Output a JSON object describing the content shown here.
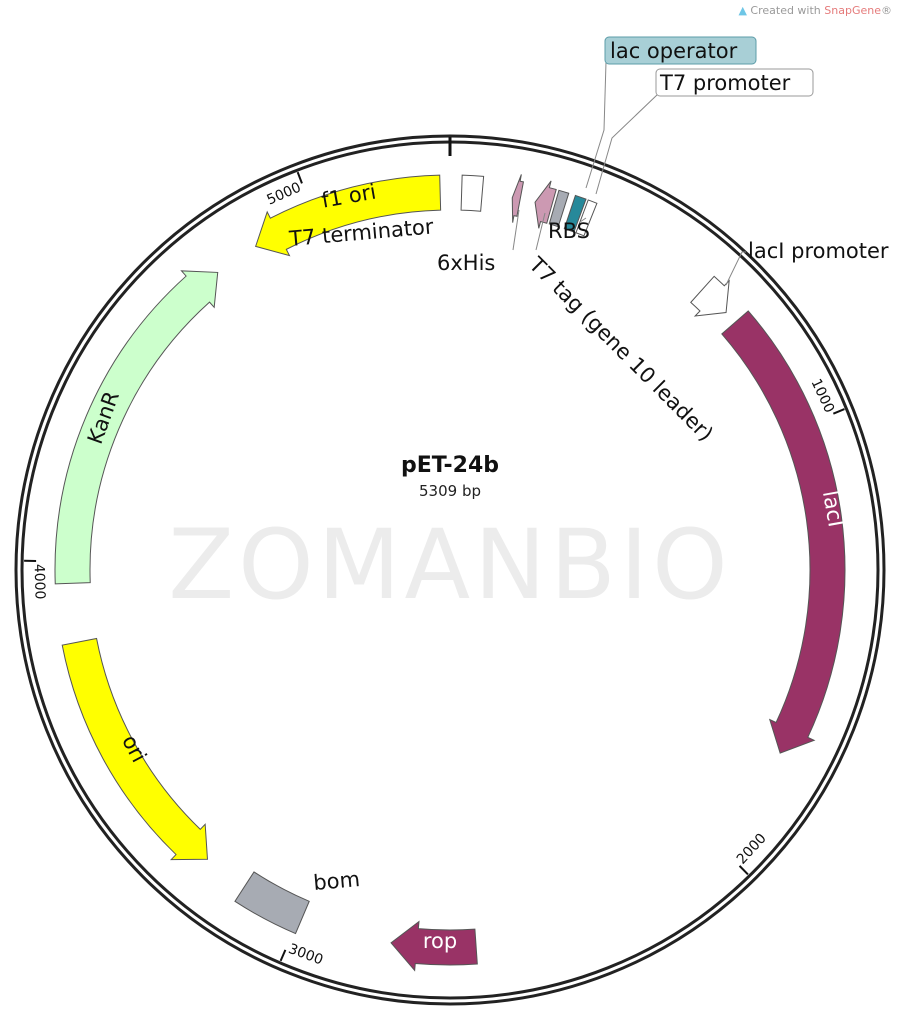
{
  "credit": {
    "prefix": "Created with ",
    "brand": "SnapGene",
    "suffix": "®",
    "icon": "snapgene-logo-icon"
  },
  "watermark": "ZOMANBIO",
  "plasmid": {
    "name": "pET-24b",
    "size_label": "5309 bp",
    "length": 5309
  },
  "ticks": [
    {
      "bp": 1000,
      "label": "1000"
    },
    {
      "bp": 2000,
      "label": "2000"
    },
    {
      "bp": 3000,
      "label": "3000"
    },
    {
      "bp": 4000,
      "label": "4000"
    },
    {
      "bp": 5000,
      "label": "5000"
    }
  ],
  "features": [
    {
      "name": "f1 ori",
      "start": 4852,
      "end": 5287,
      "direction": "reverse",
      "shape": "arrow",
      "color": "#ffff00"
    },
    {
      "name": "T7 terminator",
      "start": 26,
      "end": 72,
      "direction": "none",
      "shape": "box",
      "color": "#ffffff"
    },
    {
      "name": "6xHis",
      "start": 140,
      "end": 158,
      "direction": "reverse",
      "shape": "arrow",
      "color": "#cc99b2"
    },
    {
      "name": "T7 tag (gene 10 leader)",
      "start": 192,
      "end": 230,
      "direction": "reverse",
      "shape": "arrow",
      "color": "#cc99b2"
    },
    {
      "name": "RBS",
      "start": 236,
      "end": 258,
      "direction": "none",
      "shape": "box",
      "color": "#a7abb3"
    },
    {
      "name": "lac operator",
      "start": 273,
      "end": 297,
      "direction": "none",
      "shape": "box",
      "color": "#27899a"
    },
    {
      "name": "T7 promoter",
      "start": 302,
      "end": 322,
      "direction": "none",
      "shape": "box",
      "color": "#ffffff"
    },
    {
      "name": "lacI promoter",
      "start": 619,
      "end": 693,
      "direction": "forward",
      "shape": "arrow",
      "color": "#ffffff"
    },
    {
      "name": "lacI",
      "start": 723,
      "end": 1755,
      "direction": "forward",
      "shape": "arrow",
      "color": "#993366"
    },
    {
      "name": "rop",
      "start": 2596,
      "end": 2787,
      "direction": "forward",
      "shape": "arrow",
      "color": "#993366"
    },
    {
      "name": "bom",
      "start": 2994,
      "end": 3141,
      "direction": "none",
      "shape": "box",
      "color": "#a7abb3"
    },
    {
      "name": "ori",
      "start": 3244,
      "end": 3820,
      "direction": "reverse",
      "shape": "arrow",
      "color": "#ffff00"
    },
    {
      "name": "KanR",
      "start": 3952,
      "end": 4749,
      "direction": "forward",
      "shape": "arrow",
      "color": "#ccffcc"
    }
  ],
  "callouts": {
    "lac_operator": {
      "label": "lac operator",
      "color": "#a8cfd6"
    },
    "t7_promoter": {
      "label": "T7 promoter",
      "color": "#ffffff"
    }
  }
}
